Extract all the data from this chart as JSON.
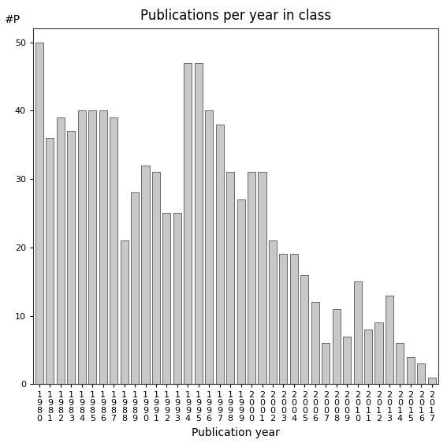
{
  "title": "Publications per year in class",
  "xlabel": "Publication year",
  "ylabel": "#P",
  "categories": [
    "1980",
    "1981",
    "1982",
    "1983",
    "1984",
    "1985",
    "1986",
    "1987",
    "1988",
    "1989",
    "1990",
    "1991",
    "1992",
    "1993",
    "1994",
    "1995",
    "1996",
    "1997",
    "1998",
    "1999",
    "2000",
    "2001",
    "2002",
    "2003",
    "2004",
    "2005",
    "2006",
    "2007",
    "2008",
    "2009",
    "2010",
    "2011",
    "2012",
    "2013",
    "2014",
    "2015",
    "2016",
    "2017"
  ],
  "values": [
    50,
    36,
    39,
    37,
    40,
    40,
    40,
    39,
    21,
    28,
    32,
    31,
    25,
    25,
    47,
    47,
    40,
    38,
    31,
    27,
    31,
    31,
    21,
    19,
    19,
    16,
    12,
    6,
    11,
    7,
    15,
    8,
    9,
    13,
    6,
    4,
    3,
    1
  ],
  "bar_color": "#c8c8c8",
  "bar_edgecolor": "#555555",
  "ylim": [
    0,
    52
  ],
  "yticks": [
    0,
    10,
    20,
    30,
    40,
    50
  ],
  "background_color": "#ffffff",
  "title_fontsize": 12,
  "axis_label_fontsize": 10,
  "tick_fontsize": 8,
  "bar_width": 0.75
}
